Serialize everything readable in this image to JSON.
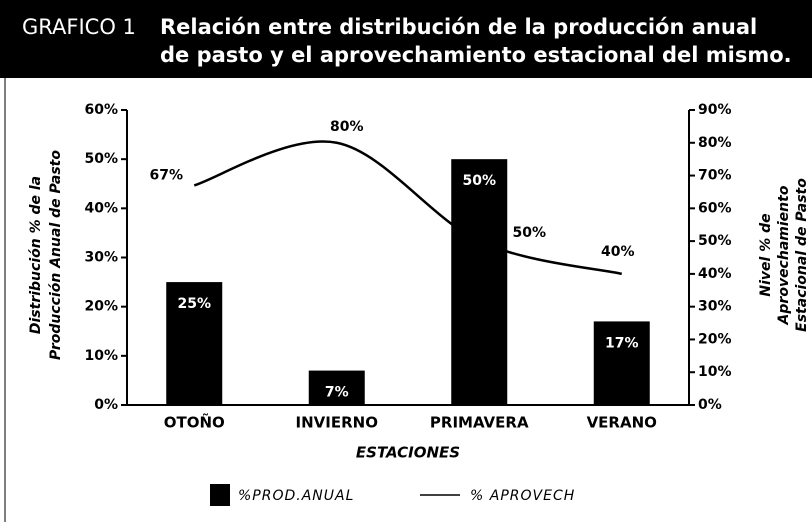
{
  "chart_data": {
    "type": "bar_line",
    "figure_label": "GRAFICO 1",
    "title_lines": [
      "Relación entre distribución de la producción anual",
      "de pasto y el aprovechamiento estacional del mismo."
    ],
    "ylabel": [
      "Distribución % de la",
      "Producción Anual de Pasto"
    ],
    "y2label": [
      "Nivel % de",
      "Aprovechamiento",
      "Estacional de Pasto"
    ],
    "xlabel": "ESTACIONES",
    "categories": [
      "OTOÑO",
      "INVIERNO",
      "PRIMAVERA",
      "VERANO"
    ],
    "series": [
      {
        "name": "%PROD.ANUAL",
        "color": "#000000",
        "kind": "bar",
        "values": [
          25,
          7,
          50,
          17
        ],
        "value_labels": [
          "25%",
          "7%",
          "50%",
          "17%"
        ]
      },
      {
        "name": "% APROVECH",
        "color": "#000000",
        "kind": "line",
        "axis": "y2",
        "values": [
          67,
          80,
          50,
          40
        ],
        "value_labels": [
          "67%",
          "80%",
          "50%",
          "40%"
        ]
      }
    ],
    "ylim": [
      0,
      60
    ],
    "yticks": [
      {
        "value": 0,
        "label": "0%"
      },
      {
        "value": 10,
        "label": "10%"
      },
      {
        "value": 20,
        "label": "20%"
      },
      {
        "value": 30,
        "label": "30%"
      },
      {
        "value": 40,
        "label": "40%"
      },
      {
        "value": 50,
        "label": "50%"
      },
      {
        "value": 60,
        "label": "60%"
      }
    ],
    "y2lim": [
      0,
      90
    ],
    "y2ticks": [
      {
        "value": 0,
        "label": "0%"
      },
      {
        "value": 10,
        "label": "10%"
      },
      {
        "value": 20,
        "label": "20%"
      },
      {
        "value": 30,
        "label": "30%"
      },
      {
        "value": 40,
        "label": "40%"
      },
      {
        "value": 50,
        "label": "50%"
      },
      {
        "value": 60,
        "label": "60%"
      },
      {
        "value": 70,
        "label": "70%"
      },
      {
        "value": 80,
        "label": "80%"
      },
      {
        "value": 90,
        "label": "90%"
      }
    ],
    "grid": false
  }
}
